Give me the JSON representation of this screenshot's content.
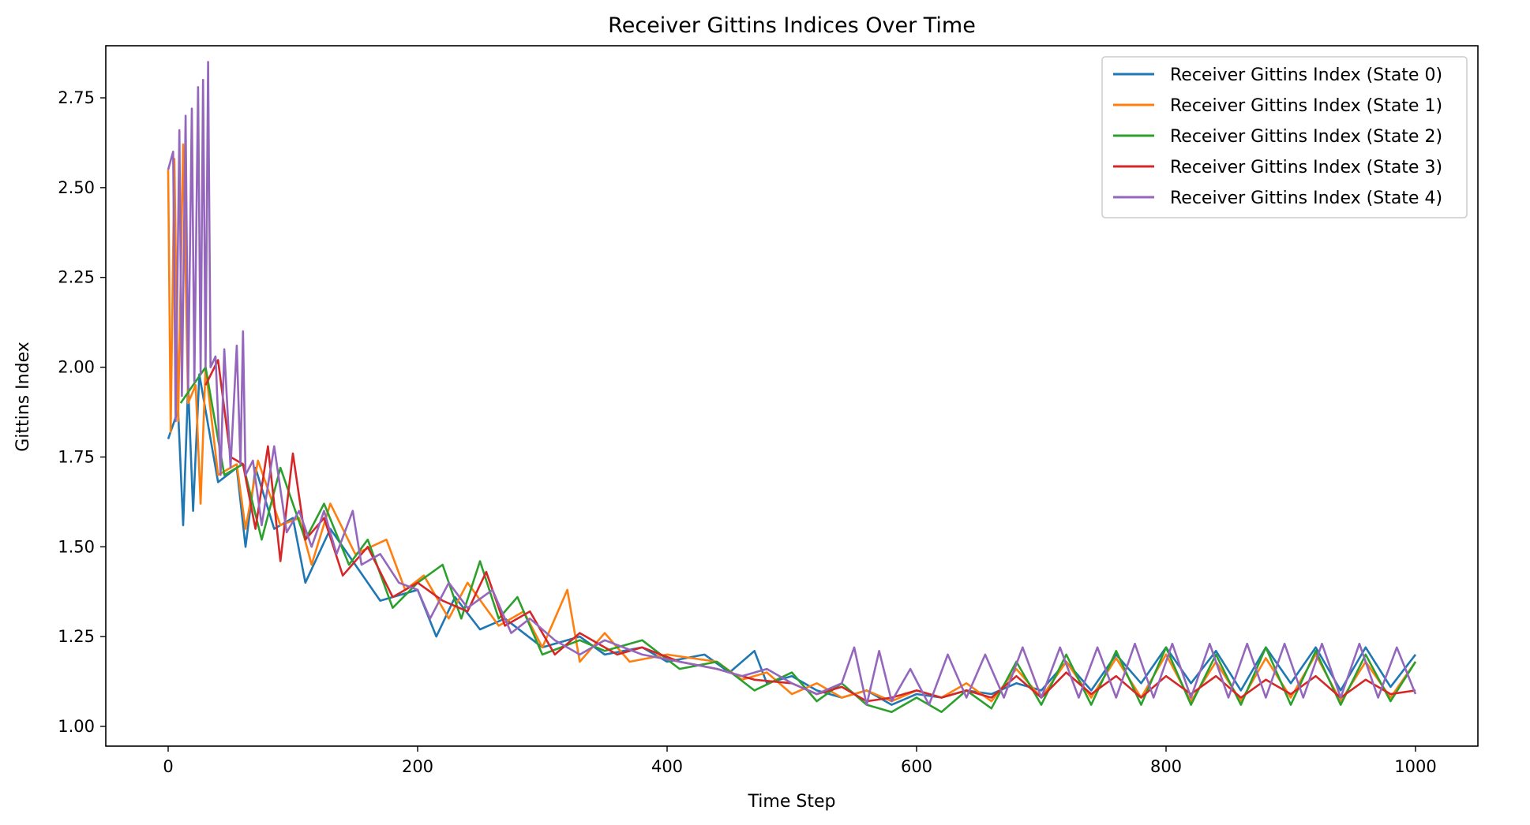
{
  "chart_data": {
    "type": "line",
    "title": "Receiver Gittins Indices Over Time",
    "xlabel": "Time Step",
    "ylabel": "Gittins Index",
    "xlim": [
      -50,
      1050
    ],
    "ylim": [
      0.945,
      2.895
    ],
    "x_ticks": [
      0,
      200,
      400,
      600,
      800,
      1000
    ],
    "y_ticks": [
      1.0,
      1.25,
      1.5,
      1.75,
      2.0,
      2.25,
      2.5,
      2.75
    ],
    "grid": false,
    "legend_position": "top-right",
    "series": [
      {
        "name": "Receiver Gittins Index (State 0)",
        "color": "#1f77b4",
        "points": [
          [
            0,
            1.8
          ],
          [
            8,
            1.88
          ],
          [
            12,
            1.56
          ],
          [
            16,
            1.95
          ],
          [
            20,
            1.6
          ],
          [
            25,
            1.98
          ],
          [
            40,
            1.68
          ],
          [
            55,
            1.72
          ],
          [
            62,
            1.5
          ],
          [
            70,
            1.72
          ],
          [
            85,
            1.55
          ],
          [
            100,
            1.58
          ],
          [
            110,
            1.4
          ],
          [
            130,
            1.55
          ],
          [
            150,
            1.45
          ],
          [
            170,
            1.35
          ],
          [
            200,
            1.38
          ],
          [
            215,
            1.25
          ],
          [
            230,
            1.36
          ],
          [
            250,
            1.27
          ],
          [
            270,
            1.3
          ],
          [
            300,
            1.22
          ],
          [
            330,
            1.25
          ],
          [
            350,
            1.2
          ],
          [
            380,
            1.22
          ],
          [
            400,
            1.18
          ],
          [
            430,
            1.2
          ],
          [
            450,
            1.15
          ],
          [
            470,
            1.21
          ],
          [
            480,
            1.12
          ],
          [
            500,
            1.14
          ],
          [
            520,
            1.1
          ],
          [
            540,
            1.08
          ],
          [
            560,
            1.1
          ],
          [
            580,
            1.06
          ],
          [
            600,
            1.09
          ],
          [
            620,
            1.08
          ],
          [
            640,
            1.1
          ],
          [
            660,
            1.09
          ],
          [
            680,
            1.12
          ],
          [
            700,
            1.1
          ],
          [
            720,
            1.18
          ],
          [
            740,
            1.1
          ],
          [
            760,
            1.2
          ],
          [
            780,
            1.12
          ],
          [
            800,
            1.22
          ],
          [
            820,
            1.12
          ],
          [
            840,
            1.21
          ],
          [
            860,
            1.1
          ],
          [
            880,
            1.22
          ],
          [
            900,
            1.12
          ],
          [
            920,
            1.22
          ],
          [
            940,
            1.1
          ],
          [
            960,
            1.22
          ],
          [
            980,
            1.11
          ],
          [
            1000,
            1.2
          ]
        ]
      },
      {
        "name": "Receiver Gittins Index (State 1)",
        "color": "#ff7f0e",
        "points": [
          [
            0,
            2.55
          ],
          [
            2,
            1.82
          ],
          [
            5,
            2.58
          ],
          [
            8,
            1.85
          ],
          [
            12,
            2.62
          ],
          [
            16,
            1.9
          ],
          [
            22,
            1.95
          ],
          [
            26,
            1.62
          ],
          [
            30,
            2.0
          ],
          [
            40,
            1.7
          ],
          [
            55,
            1.73
          ],
          [
            62,
            1.55
          ],
          [
            72,
            1.74
          ],
          [
            90,
            1.56
          ],
          [
            105,
            1.58
          ],
          [
            115,
            1.45
          ],
          [
            130,
            1.62
          ],
          [
            150,
            1.48
          ],
          [
            175,
            1.52
          ],
          [
            190,
            1.38
          ],
          [
            205,
            1.42
          ],
          [
            225,
            1.3
          ],
          [
            240,
            1.4
          ],
          [
            265,
            1.28
          ],
          [
            285,
            1.32
          ],
          [
            300,
            1.22
          ],
          [
            320,
            1.38
          ],
          [
            330,
            1.18
          ],
          [
            350,
            1.26
          ],
          [
            370,
            1.18
          ],
          [
            400,
            1.2
          ],
          [
            440,
            1.18
          ],
          [
            460,
            1.13
          ],
          [
            480,
            1.15
          ],
          [
            500,
            1.09
          ],
          [
            520,
            1.12
          ],
          [
            540,
            1.08
          ],
          [
            560,
            1.1
          ],
          [
            580,
            1.07
          ],
          [
            600,
            1.1
          ],
          [
            620,
            1.08
          ],
          [
            640,
            1.12
          ],
          [
            660,
            1.07
          ],
          [
            680,
            1.16
          ],
          [
            700,
            1.08
          ],
          [
            720,
            1.18
          ],
          [
            740,
            1.08
          ],
          [
            760,
            1.19
          ],
          [
            780,
            1.08
          ],
          [
            800,
            1.2
          ],
          [
            820,
            1.07
          ],
          [
            840,
            1.18
          ],
          [
            860,
            1.07
          ],
          [
            880,
            1.19
          ],
          [
            900,
            1.08
          ],
          [
            920,
            1.2
          ],
          [
            940,
            1.07
          ],
          [
            960,
            1.18
          ],
          [
            980,
            1.08
          ],
          [
            1000,
            1.18
          ]
        ]
      },
      {
        "name": "Receiver Gittins Index (State 2)",
        "color": "#2ca02c",
        "points": [
          [
            10,
            1.9
          ],
          [
            20,
            1.95
          ],
          [
            30,
            2.0
          ],
          [
            45,
            1.7
          ],
          [
            60,
            1.73
          ],
          [
            75,
            1.52
          ],
          [
            90,
            1.72
          ],
          [
            110,
            1.52
          ],
          [
            125,
            1.62
          ],
          [
            145,
            1.45
          ],
          [
            160,
            1.52
          ],
          [
            180,
            1.33
          ],
          [
            200,
            1.4
          ],
          [
            220,
            1.45
          ],
          [
            235,
            1.3
          ],
          [
            250,
            1.46
          ],
          [
            265,
            1.3
          ],
          [
            280,
            1.36
          ],
          [
            300,
            1.2
          ],
          [
            330,
            1.24
          ],
          [
            350,
            1.21
          ],
          [
            380,
            1.24
          ],
          [
            410,
            1.16
          ],
          [
            440,
            1.18
          ],
          [
            470,
            1.1
          ],
          [
            500,
            1.15
          ],
          [
            520,
            1.07
          ],
          [
            540,
            1.12
          ],
          [
            560,
            1.06
          ],
          [
            580,
            1.04
          ],
          [
            600,
            1.08
          ],
          [
            620,
            1.04
          ],
          [
            640,
            1.1
          ],
          [
            660,
            1.05
          ],
          [
            680,
            1.18
          ],
          [
            700,
            1.06
          ],
          [
            720,
            1.2
          ],
          [
            740,
            1.06
          ],
          [
            760,
            1.21
          ],
          [
            780,
            1.06
          ],
          [
            800,
            1.22
          ],
          [
            820,
            1.06
          ],
          [
            840,
            1.2
          ],
          [
            860,
            1.06
          ],
          [
            880,
            1.22
          ],
          [
            900,
            1.06
          ],
          [
            920,
            1.21
          ],
          [
            940,
            1.06
          ],
          [
            960,
            1.2
          ],
          [
            980,
            1.07
          ],
          [
            1000,
            1.18
          ]
        ]
      },
      {
        "name": "Receiver Gittins Index (State 3)",
        "color": "#d62728",
        "points": [
          [
            30,
            1.95
          ],
          [
            40,
            2.02
          ],
          [
            50,
            1.75
          ],
          [
            60,
            1.73
          ],
          [
            70,
            1.55
          ],
          [
            80,
            1.78
          ],
          [
            90,
            1.46
          ],
          [
            100,
            1.76
          ],
          [
            110,
            1.52
          ],
          [
            125,
            1.58
          ],
          [
            140,
            1.42
          ],
          [
            160,
            1.5
          ],
          [
            180,
            1.36
          ],
          [
            200,
            1.4
          ],
          [
            220,
            1.35
          ],
          [
            240,
            1.32
          ],
          [
            255,
            1.43
          ],
          [
            270,
            1.28
          ],
          [
            290,
            1.32
          ],
          [
            310,
            1.2
          ],
          [
            330,
            1.26
          ],
          [
            360,
            1.2
          ],
          [
            380,
            1.22
          ],
          [
            410,
            1.18
          ],
          [
            440,
            1.16
          ],
          [
            470,
            1.13
          ],
          [
            500,
            1.12
          ],
          [
            520,
            1.09
          ],
          [
            540,
            1.11
          ],
          [
            560,
            1.07
          ],
          [
            580,
            1.08
          ],
          [
            600,
            1.1
          ],
          [
            620,
            1.08
          ],
          [
            640,
            1.1
          ],
          [
            660,
            1.08
          ],
          [
            680,
            1.14
          ],
          [
            700,
            1.08
          ],
          [
            720,
            1.15
          ],
          [
            740,
            1.09
          ],
          [
            760,
            1.14
          ],
          [
            780,
            1.08
          ],
          [
            800,
            1.14
          ],
          [
            820,
            1.09
          ],
          [
            840,
            1.14
          ],
          [
            860,
            1.08
          ],
          [
            880,
            1.13
          ],
          [
            900,
            1.09
          ],
          [
            920,
            1.14
          ],
          [
            940,
            1.08
          ],
          [
            960,
            1.13
          ],
          [
            980,
            1.09
          ],
          [
            1000,
            1.1
          ]
        ]
      },
      {
        "name": "Receiver Gittins Index (State 4)",
        "color": "#9467bd",
        "points": [
          [
            0,
            2.55
          ],
          [
            4,
            2.6
          ],
          [
            6,
            1.85
          ],
          [
            9,
            2.66
          ],
          [
            11,
            1.92
          ],
          [
            14,
            2.7
          ],
          [
            16,
            1.94
          ],
          [
            19,
            2.72
          ],
          [
            21,
            1.96
          ],
          [
            24,
            2.78
          ],
          [
            26,
            1.98
          ],
          [
            28,
            2.8
          ],
          [
            30,
            2.0
          ],
          [
            32,
            2.85
          ],
          [
            34,
            2.0
          ],
          [
            38,
            2.03
          ],
          [
            42,
            1.7
          ],
          [
            45,
            2.05
          ],
          [
            50,
            1.72
          ],
          [
            55,
            2.06
          ],
          [
            58,
            1.73
          ],
          [
            60,
            2.1
          ],
          [
            62,
            1.7
          ],
          [
            68,
            1.74
          ],
          [
            75,
            1.56
          ],
          [
            85,
            1.78
          ],
          [
            95,
            1.54
          ],
          [
            105,
            1.6
          ],
          [
            115,
            1.5
          ],
          [
            125,
            1.6
          ],
          [
            135,
            1.48
          ],
          [
            148,
            1.6
          ],
          [
            155,
            1.45
          ],
          [
            170,
            1.48
          ],
          [
            185,
            1.4
          ],
          [
            200,
            1.38
          ],
          [
            210,
            1.3
          ],
          [
            225,
            1.4
          ],
          [
            240,
            1.33
          ],
          [
            260,
            1.38
          ],
          [
            275,
            1.26
          ],
          [
            290,
            1.3
          ],
          [
            310,
            1.24
          ],
          [
            330,
            1.2
          ],
          [
            350,
            1.24
          ],
          [
            380,
            1.2
          ],
          [
            410,
            1.18
          ],
          [
            440,
            1.16
          ],
          [
            460,
            1.14
          ],
          [
            480,
            1.16
          ],
          [
            500,
            1.12
          ],
          [
            520,
            1.09
          ],
          [
            540,
            1.12
          ],
          [
            550,
            1.22
          ],
          [
            560,
            1.06
          ],
          [
            570,
            1.21
          ],
          [
            580,
            1.07
          ],
          [
            595,
            1.16
          ],
          [
            610,
            1.06
          ],
          [
            625,
            1.2
          ],
          [
            640,
            1.08
          ],
          [
            655,
            1.2
          ],
          [
            670,
            1.08
          ],
          [
            685,
            1.22
          ],
          [
            700,
            1.08
          ],
          [
            715,
            1.22
          ],
          [
            730,
            1.08
          ],
          [
            745,
            1.22
          ],
          [
            760,
            1.08
          ],
          [
            775,
            1.23
          ],
          [
            790,
            1.08
          ],
          [
            805,
            1.23
          ],
          [
            820,
            1.08
          ],
          [
            835,
            1.23
          ],
          [
            850,
            1.08
          ],
          [
            865,
            1.23
          ],
          [
            880,
            1.08
          ],
          [
            895,
            1.23
          ],
          [
            910,
            1.08
          ],
          [
            925,
            1.23
          ],
          [
            940,
            1.08
          ],
          [
            955,
            1.23
          ],
          [
            970,
            1.08
          ],
          [
            985,
            1.22
          ],
          [
            1000,
            1.09
          ]
        ]
      }
    ]
  }
}
